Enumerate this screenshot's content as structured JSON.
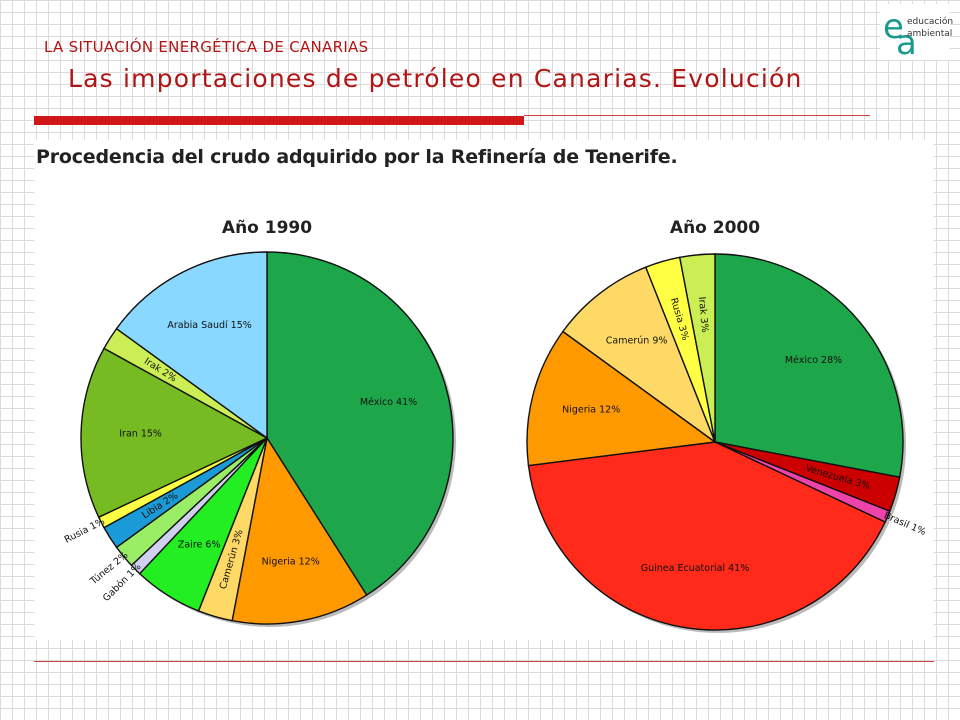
{
  "header": {
    "section": "LA SITUACIÓN ENERGÉTICA DE CANARIAS",
    "title": "Las importaciones de petróleo en Canarias. Evolución"
  },
  "logo": {
    "letter_top": "e",
    "letter_bottom": "a",
    "line1": "educación",
    "line2": "ambiental",
    "color": "#1a9a8c"
  },
  "chart_title": "Procedencia del crudo adquirido por la Refinería de Tenerife.",
  "chart_data": [
    {
      "type": "pie",
      "title": "Año 1990",
      "slices": [
        {
          "label": "México 41%",
          "value": 41,
          "color": "#1ea64a"
        },
        {
          "label": "Nigeria 12%",
          "value": 12,
          "color": "#ff9900"
        },
        {
          "label": "Camerún 3%",
          "value": 3,
          "color": "#ffd966"
        },
        {
          "label": "Zaire 6%",
          "value": 6,
          "color": "#22ee22"
        },
        {
          "label": "Gabón 1%",
          "value": 1,
          "color": "#d0d0f0"
        },
        {
          "label": "Túnez 2%",
          "value": 2,
          "color": "#99ee66"
        },
        {
          "label": "Libia 2%",
          "value": 2,
          "color": "#1a9ad6"
        },
        {
          "label": "Rusia 1%",
          "value": 1,
          "color": "#ffff44"
        },
        {
          "label": "Iran 15%",
          "value": 15,
          "color": "#77bb22"
        },
        {
          "label": "Irak 2%",
          "value": 2,
          "color": "#ccee55"
        },
        {
          "label": "Arabia Saudí 15%",
          "value": 15,
          "color": "#88d8ff"
        }
      ]
    },
    {
      "type": "pie",
      "title": "Año 2000",
      "slices": [
        {
          "label": "México 28%",
          "value": 28,
          "color": "#1ea64a"
        },
        {
          "label": "Venezuela 3%",
          "value": 3,
          "color": "#cc0000"
        },
        {
          "label": "Brasil 1%",
          "value": 1,
          "color": "#ee44aa"
        },
        {
          "label": "Guinea Ecuatorial 41%",
          "value": 41,
          "color": "#ff2a1a"
        },
        {
          "label": "Nigeria 12%",
          "value": 12,
          "color": "#ff9900"
        },
        {
          "label": "Camerún 9%",
          "value": 9,
          "color": "#ffd966"
        },
        {
          "label": "Rusia 3%",
          "value": 3,
          "color": "#ffff44"
        },
        {
          "label": "Irak 3%",
          "value": 3,
          "color": "#ccee55"
        }
      ]
    }
  ]
}
